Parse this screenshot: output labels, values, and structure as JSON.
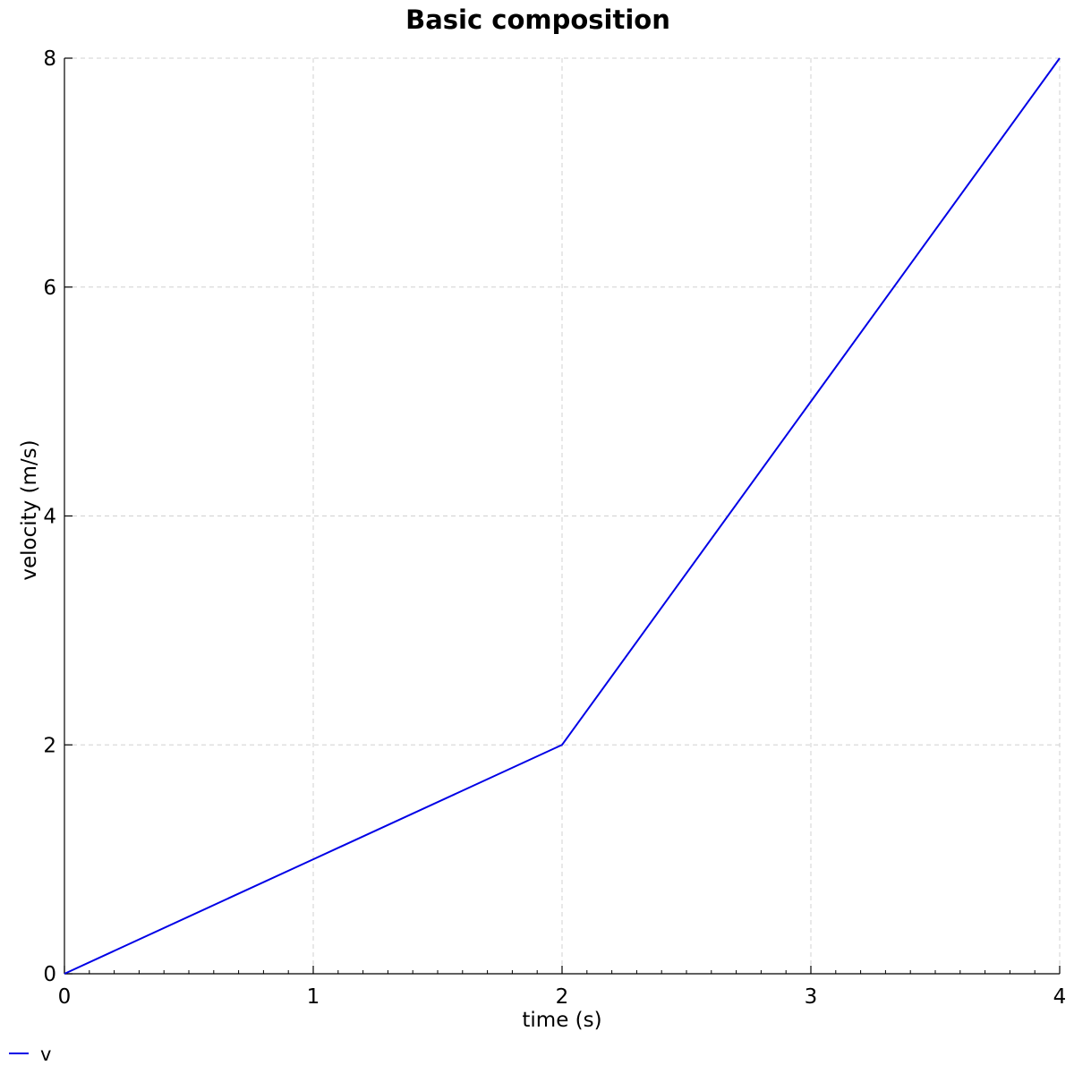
{
  "chart_data": {
    "type": "line",
    "title": "Basic composition",
    "xlabel": "time (s)",
    "ylabel": "velocity (m/s)",
    "xlim": [
      0,
      4
    ],
    "ylim": [
      0,
      8
    ],
    "x_ticks": [
      0,
      1,
      2,
      3,
      4
    ],
    "y_ticks": [
      0,
      2,
      4,
      6,
      8
    ],
    "x_tick_labels": [
      "0",
      "1",
      "2",
      "3",
      "4"
    ],
    "y_tick_labels": [
      "0",
      "2",
      "4",
      "6",
      "8"
    ],
    "grid": true,
    "legend_position": "bottom-left",
    "series": [
      {
        "name": "v",
        "color": "#0000e6",
        "x": [
          0,
          1,
          2,
          3,
          4
        ],
        "y": [
          0,
          1,
          2,
          5,
          8
        ]
      }
    ]
  }
}
